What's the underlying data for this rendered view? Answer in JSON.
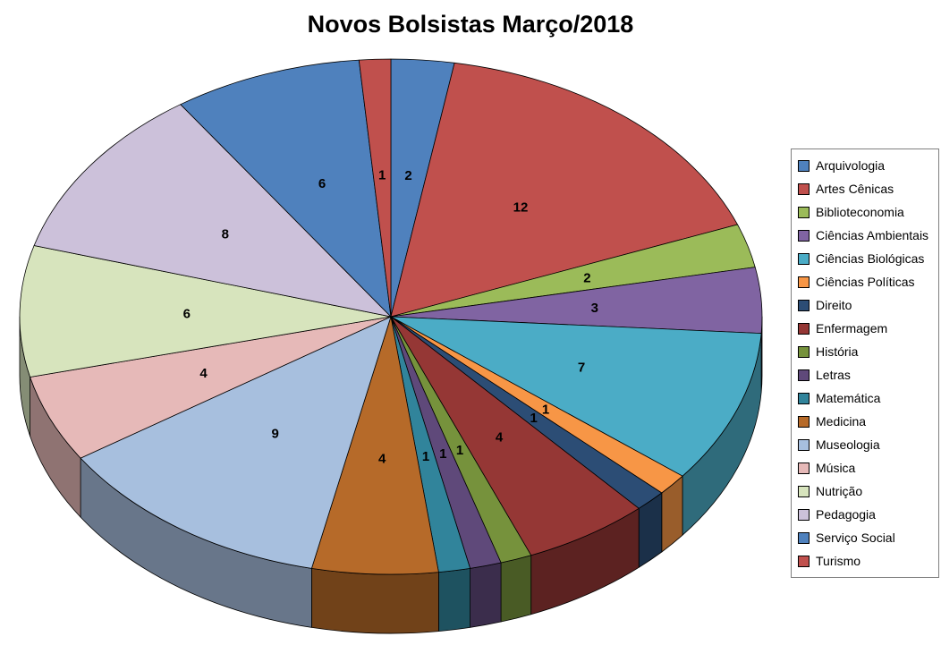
{
  "page": {
    "background": "#ffffff"
  },
  "chart_data": {
    "type": "pie",
    "style": "pie-3d",
    "title": "Novos Bolsistas Março/2018",
    "categories": [
      "Arquivologia",
      "Artes Cênicas",
      "Biblioteconomia",
      "Ciências Ambientais",
      "Ciências Biológicas",
      "Ciências Políticas",
      "Direito",
      "Enfermagem",
      "História",
      "Letras",
      "Matemática",
      "Medicina",
      "Museologia",
      "Música",
      "Nutrição",
      "Pedagogia",
      "Serviço Social",
      "Turismo"
    ],
    "values": [
      2,
      12,
      2,
      3,
      7,
      1,
      1,
      4,
      1,
      1,
      1,
      4,
      9,
      4,
      6,
      8,
      6,
      1
    ],
    "colors": [
      "#4F81BD",
      "#C0504D",
      "#9BBB59",
      "#8064A2",
      "#4BACC6",
      "#F79646",
      "#2C4D75",
      "#953735",
      "#76923C",
      "#5F497A",
      "#31849B",
      "#B66A29",
      "#A7BFDE",
      "#E6B9B8",
      "#D7E4BD",
      "#CCC1DA",
      "#4F81BD",
      "#C0504D"
    ],
    "data_labels": "value",
    "legend_position": "right",
    "start_angle_deg": 0,
    "direction": "clockwise"
  }
}
